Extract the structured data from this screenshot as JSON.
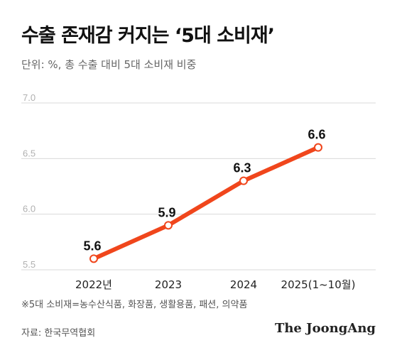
{
  "header": {
    "title": "수출 존재감 커지는 ‘5대 소비재’",
    "subtitle": "단위: %, 총 수출 대비 5대 소비재 비중"
  },
  "footer": {
    "note": "※5대 소비재=농수산식품, 화장품, 생활용품, 패션, 의약품",
    "source": "자료: 한국무역협회",
    "brand": "The JoongAng"
  },
  "colors": {
    "line": "#f0461c",
    "grid": "#d9d9d9",
    "tick": "#b0b0b0"
  },
  "chart_data": {
    "type": "line",
    "categories": [
      "2022년",
      "2023",
      "2024",
      "2025(1~10월)"
    ],
    "values": [
      5.6,
      5.9,
      6.3,
      6.6
    ],
    "value_labels": [
      "5.6",
      "5.9",
      "6.3",
      "6.6"
    ],
    "ylim": [
      5.5,
      7.0
    ],
    "yticks": [
      {
        "value": 7.0,
        "label": "7.0"
      },
      {
        "value": 6.5,
        "label": "6.5"
      },
      {
        "value": 6.0,
        "label": "6.0"
      },
      {
        "value": 5.5,
        "label": "5.5"
      }
    ],
    "grid": true,
    "title": "",
    "xlabel": "",
    "ylabel": ""
  }
}
